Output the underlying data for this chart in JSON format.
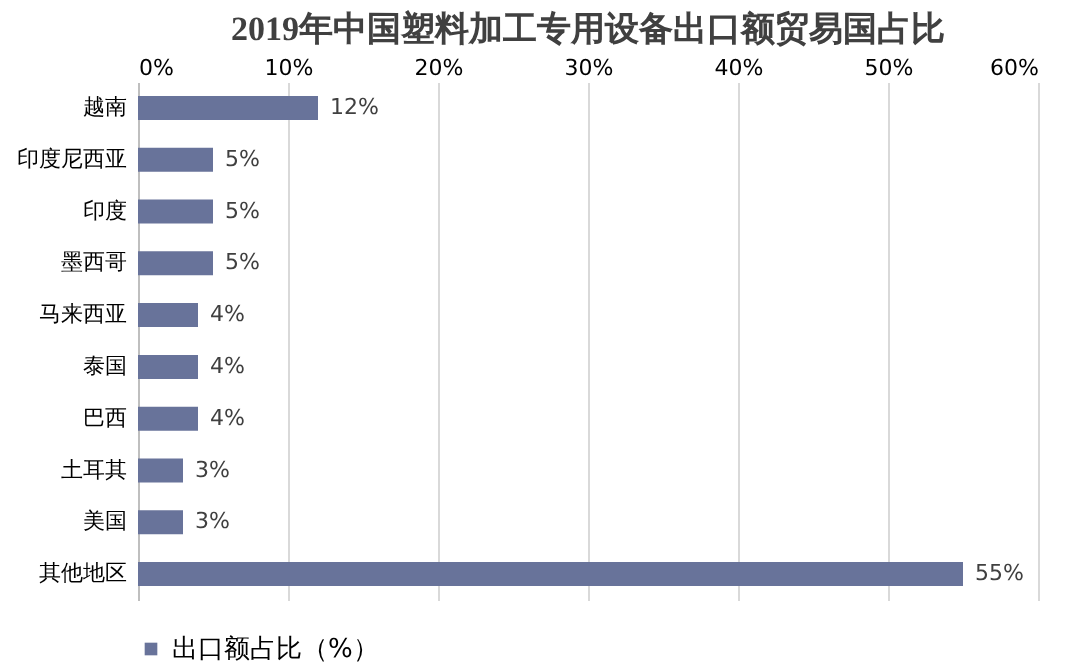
{
  "chart_data": {
    "type": "bar",
    "orientation": "horizontal",
    "title": "2019年中国塑料加工专用设备出口额贸易国占比",
    "categories": [
      "越南",
      "印度尼西亚",
      "印度",
      "墨西哥",
      "马来西亚",
      "泰国",
      "巴西",
      "土耳其",
      "美国",
      "其他地区"
    ],
    "series": [
      {
        "name": "出口额占比（%）",
        "color": "#68739a",
        "values": [
          12,
          5,
          5,
          5,
          4,
          4,
          4,
          3,
          3,
          55
        ],
        "value_labels": [
          "12%",
          "5%",
          "5%",
          "5%",
          "4%",
          "4%",
          "4%",
          "3%",
          "3%",
          "55%"
        ]
      }
    ],
    "xlim": [
      0,
      60
    ],
    "xticks": [
      {
        "value": 0,
        "label": "0%"
      },
      {
        "value": 10,
        "label": "10%"
      },
      {
        "value": 20,
        "label": "20%"
      },
      {
        "value": 30,
        "label": "30%"
      },
      {
        "value": 40,
        "label": "40%"
      },
      {
        "value": 50,
        "label": "50%"
      },
      {
        "value": 60,
        "label": "60%"
      }
    ],
    "grid": "x",
    "legend": "bottom"
  }
}
